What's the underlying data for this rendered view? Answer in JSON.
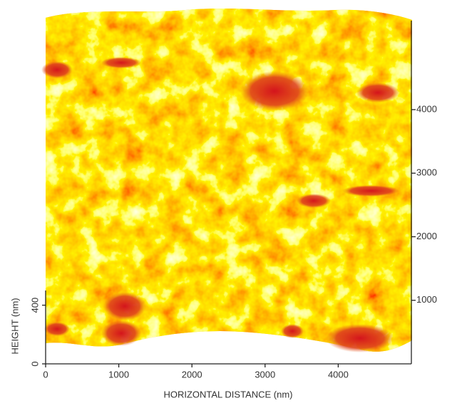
{
  "chart_data": {
    "type": "surface",
    "x_label": "HORIZONTAL DISTANCE (nm)",
    "z_label": "HEIGHT (nm)",
    "xlim": [
      0,
      5000
    ],
    "xticks": [
      0,
      1000,
      2000,
      3000,
      4000
    ],
    "zlim": [
      0,
      500
    ],
    "zticks": [
      0,
      400
    ],
    "ylim": [
      0,
      5400
    ],
    "yticks": [
      1000,
      2000,
      3000,
      4000
    ]
  }
}
